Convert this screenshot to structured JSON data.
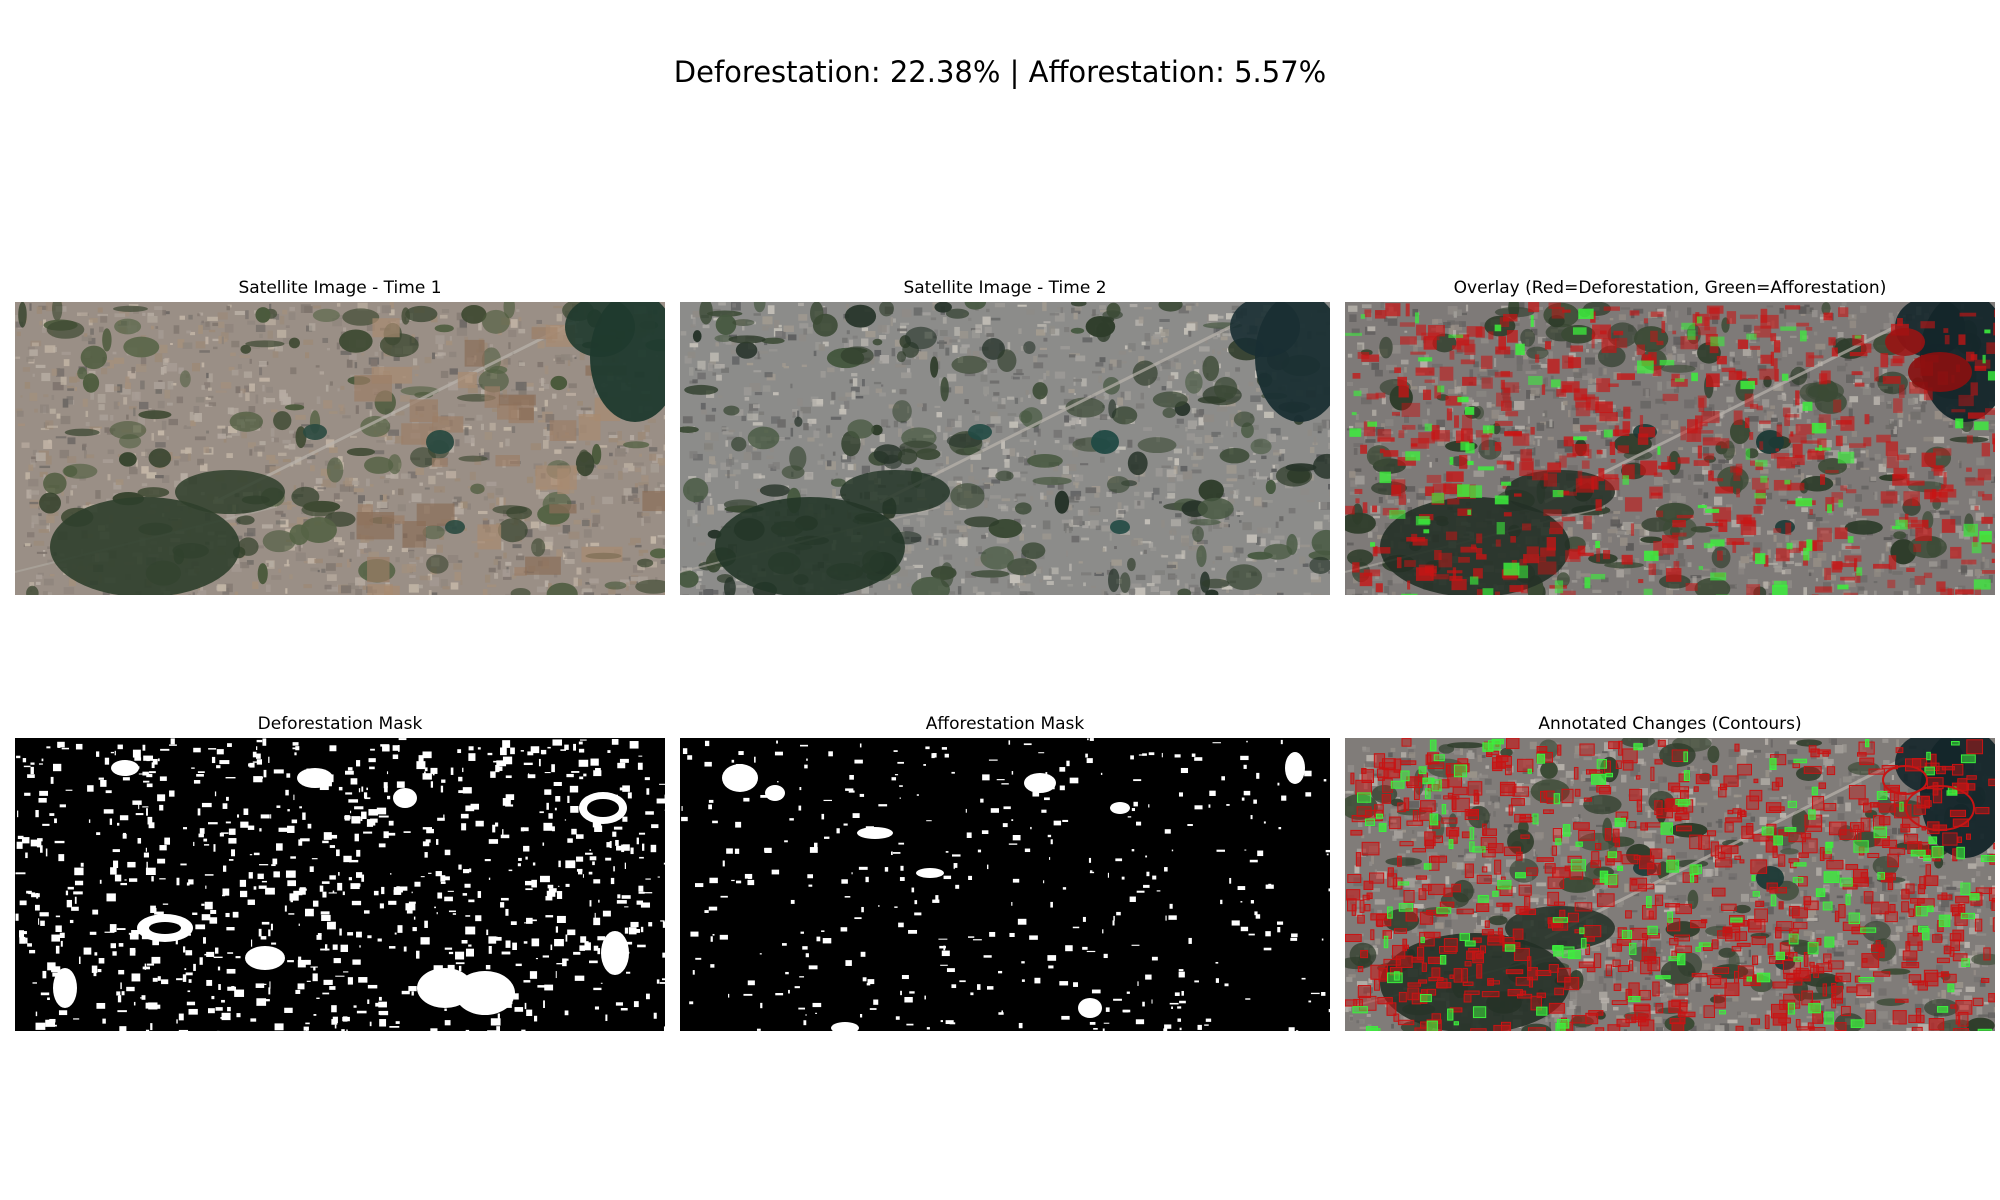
{
  "figure": {
    "title": "Deforestation: 22.38% | Afforestation: 5.57%",
    "stats": {
      "deforestation_percent": 22.38,
      "afforestation_percent": 5.57
    }
  },
  "panels": [
    {
      "title": "Satellite Image - Time 1",
      "kind": "satellite-time1"
    },
    {
      "title": "Satellite Image - Time 2",
      "kind": "satellite-time2"
    },
    {
      "title": "Overlay (Red=Deforestation, Green=Afforestation)",
      "kind": "overlay"
    },
    {
      "title": "Deforestation Mask",
      "kind": "mask-deforestation"
    },
    {
      "title": "Afforestation Mask",
      "kind": "mask-afforestation"
    },
    {
      "title": "Annotated Changes (Contours)",
      "kind": "contours"
    }
  ],
  "colors": {
    "deforestation": "#c81414",
    "afforestation": "#3cf03c",
    "mask_background": "#000000",
    "mask_foreground": "#ffffff"
  }
}
